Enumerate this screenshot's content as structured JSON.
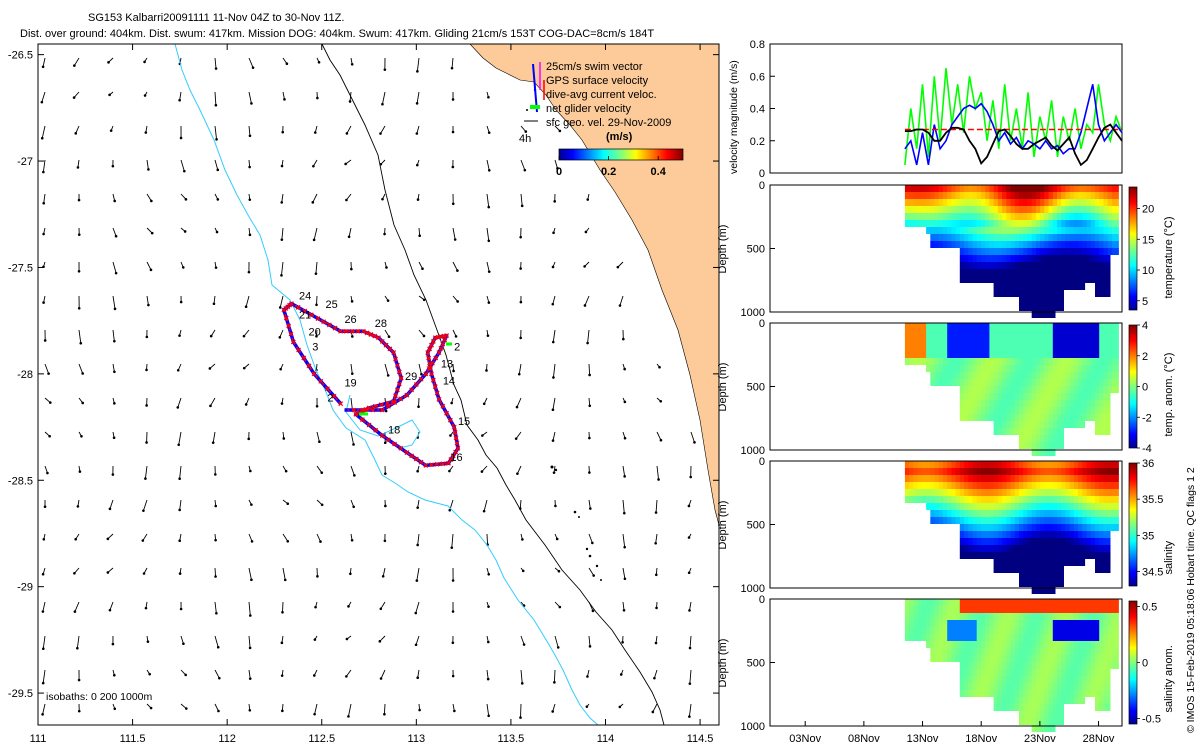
{
  "header": {
    "title_line1": "SG153 Kalbarri20091111 11-Nov 04Z to 30-Nov 11Z.",
    "title_line2": "Dist. over ground: 404km. Dist. swum: 417km. Mission DOG: 404km. Swum: 417km. Gliding 21cm/s 153T COG-DAC=8cm/s 184T"
  },
  "footer": {
    "credit": "© IMOS 15-Feb-2019 05:18:06 Hobart time. QC flags 1  2"
  },
  "colors": {
    "land": "#FDCB99",
    "isobath": "#33CCFF",
    "track_red": "#FF0000",
    "track_blue": "#0000FF",
    "glider_green": "#00FF00",
    "arrow": "#000000"
  },
  "chart_data": [
    {
      "type": "scatter",
      "id": "map",
      "x_ticks": [
        "111",
        "111.5",
        "112",
        "112.5",
        "113",
        "113.5",
        "114",
        "114.5"
      ],
      "y_ticks": [
        "-26.5",
        "-27",
        "-27.5",
        "-28",
        "-28.5",
        "-29",
        "-29.5"
      ],
      "xlim": [
        111,
        114.6
      ],
      "ylim": [
        -29.65,
        -26.45
      ],
      "legend": {
        "items": [
          {
            "label": "25cm/s swim vector",
            "color": "#0000FF"
          },
          {
            "label": "GPS surface velocity",
            "color": "#FF00FF"
          },
          {
            "label": "dive-avg current veloc.",
            "color": "#FF0000"
          },
          {
            "label": "net glider velocity",
            "color": "#00FF00"
          },
          {
            "label": "sfc geo. vel. 29-Nov-2009",
            "color": "#000000"
          }
        ],
        "scale_label": "4h",
        "colorbar_title": "(m/s)",
        "colorbar_ticks": [
          "0",
          "0.2",
          "0.4"
        ],
        "colorbar_range": [
          0,
          0.5
        ]
      },
      "isobaths_label": "isobaths: 0   200  1000m",
      "track_points": [
        {
          "lon": 112.6,
          "lat": -28.14
        },
        {
          "lon": 112.46,
          "lat": -28.0
        },
        {
          "lon": 112.35,
          "lat": -27.85
        },
        {
          "lon": 112.3,
          "lat": -27.7
        },
        {
          "lon": 112.34,
          "lat": -27.67
        },
        {
          "lon": 112.48,
          "lat": -27.74
        },
        {
          "lon": 112.6,
          "lat": -27.8
        },
        {
          "lon": 112.72,
          "lat": -27.8
        },
        {
          "lon": 112.8,
          "lat": -27.83
        },
        {
          "lon": 112.88,
          "lat": -27.9
        },
        {
          "lon": 112.92,
          "lat": -28.02
        },
        {
          "lon": 112.88,
          "lat": -28.13
        },
        {
          "lon": 112.75,
          "lat": -28.16
        },
        {
          "lon": 112.68,
          "lat": -28.19
        },
        {
          "lon": 112.82,
          "lat": -28.29
        },
        {
          "lon": 112.95,
          "lat": -28.37
        },
        {
          "lon": 113.05,
          "lat": -28.43
        },
        {
          "lon": 113.17,
          "lat": -28.42
        },
        {
          "lon": 113.22,
          "lat": -28.35
        },
        {
          "lon": 113.2,
          "lat": -28.25
        },
        {
          "lon": 113.12,
          "lat": -28.12
        },
        {
          "lon": 113.08,
          "lat": -28.0
        },
        {
          "lon": 113.06,
          "lat": -27.9
        },
        {
          "lon": 113.1,
          "lat": -27.83
        },
        {
          "lon": 113.16,
          "lat": -27.82
        },
        {
          "lon": 113.12,
          "lat": -27.9
        },
        {
          "lon": 113.05,
          "lat": -28.0
        },
        {
          "lon": 112.95,
          "lat": -28.1
        },
        {
          "lon": 112.82,
          "lat": -28.17
        },
        {
          "lon": 112.62,
          "lat": -28.17
        }
      ],
      "day_labels": [
        {
          "label": "24",
          "lon": 112.38,
          "lat": -27.65
        },
        {
          "label": "25",
          "lon": 112.52,
          "lat": -27.69
        },
        {
          "label": "21",
          "lon": 112.38,
          "lat": -27.74
        },
        {
          "label": "26",
          "lon": 112.62,
          "lat": -27.76
        },
        {
          "label": "28",
          "lon": 112.78,
          "lat": -27.78
        },
        {
          "label": "20",
          "lon": 112.43,
          "lat": -27.82
        },
        {
          "label": "3",
          "lon": 112.45,
          "lat": -27.89
        },
        {
          "label": "2",
          "lon": 113.2,
          "lat": -27.89
        },
        {
          "label": "13",
          "lon": 113.13,
          "lat": -27.97
        },
        {
          "label": "19",
          "lon": 112.62,
          "lat": -28.06
        },
        {
          "label": "29",
          "lon": 112.94,
          "lat": -28.03
        },
        {
          "label": "14",
          "lon": 113.14,
          "lat": -28.05
        },
        {
          "label": "2",
          "lon": 112.53,
          "lat": -28.13
        },
        {
          "label": "15",
          "lon": 113.22,
          "lat": -28.24
        },
        {
          "label": "18",
          "lon": 112.85,
          "lat": -28.28
        },
        {
          "label": "16",
          "lon": 113.18,
          "lat": -28.41
        }
      ]
    },
    {
      "type": "line",
      "id": "velocity",
      "ylabel": "velocity magnitude (m/s)",
      "y_ticks": [
        "0",
        "0.2",
        "0.4",
        "0.6",
        "0.8"
      ],
      "ylim": [
        0,
        0.8
      ],
      "xlim": [
        0,
        30
      ],
      "series": [
        {
          "color": "#00FF00",
          "x": [
            11.5,
            12,
            12.5,
            13,
            13.5,
            14,
            14.5,
            15,
            15.5,
            16,
            16.5,
            17,
            17.5,
            18,
            18.5,
            19,
            19.5,
            20,
            20.5,
            21,
            21.5,
            22,
            22.5,
            23,
            23.5,
            24,
            24.5,
            25,
            25.5,
            26,
            26.5,
            27,
            27.5,
            28,
            28.5,
            29,
            29.5,
            30
          ],
          "values": [
            0.05,
            0.4,
            0.15,
            0.55,
            0.1,
            0.6,
            0.2,
            0.65,
            0.3,
            0.55,
            0.25,
            0.6,
            0.4,
            0.5,
            0.2,
            0.45,
            0.15,
            0.55,
            0.2,
            0.4,
            0.15,
            0.5,
            0.1,
            0.35,
            0.2,
            0.45,
            0.1,
            0.35,
            0.2,
            0.4,
            0.15,
            0.3,
            0.25,
            0.55,
            0.3,
            0.2,
            0.35,
            0.25
          ]
        },
        {
          "color": "#0000FF",
          "x": [
            11.5,
            12,
            12.5,
            13,
            13.5,
            14,
            14.5,
            15,
            15.5,
            16,
            16.5,
            17,
            17.5,
            18,
            18.5,
            19,
            19.5,
            20,
            20.5,
            21,
            21.5,
            22,
            22.5,
            23,
            23.5,
            24,
            24.5,
            25,
            25.5,
            26,
            26.5,
            27,
            27.5,
            28,
            28.5,
            29,
            29.5,
            30
          ],
          "values": [
            0.15,
            0.2,
            0.05,
            0.25,
            0.05,
            0.3,
            0.15,
            0.2,
            0.3,
            0.35,
            0.4,
            0.42,
            0.4,
            0.43,
            0.38,
            0.3,
            0.2,
            0.25,
            0.18,
            0.22,
            0.15,
            0.2,
            0.18,
            0.15,
            0.2,
            0.15,
            0.17,
            0.12,
            0.15,
            0.15,
            0.25,
            0.4,
            0.55,
            0.3,
            0.2,
            0.25,
            0.3,
            0.25
          ]
        },
        {
          "color": "#FF0000",
          "x": [
            11.5,
            30
          ],
          "values": [
            0.27,
            0.27
          ]
        },
        {
          "color": "#000000",
          "x": [
            11.5,
            12,
            12.5,
            13,
            13.5,
            14,
            14.5,
            15,
            15.5,
            16,
            16.5,
            17,
            17.5,
            18,
            18.5,
            19,
            19.5,
            20,
            20.5,
            21,
            21.5,
            22,
            22.5,
            23,
            23.5,
            24,
            24.5,
            25,
            25.5,
            26,
            26.5,
            27,
            27.5,
            28,
            28.5,
            29,
            29.5,
            30
          ],
          "values": [
            0.26,
            0.26,
            0.27,
            0.27,
            0.25,
            0.2,
            0.2,
            0.25,
            0.28,
            0.28,
            0.27,
            0.2,
            0.15,
            0.06,
            0.1,
            0.18,
            0.26,
            0.27,
            0.23,
            0.18,
            0.15,
            0.15,
            0.18,
            0.2,
            0.22,
            0.17,
            0.14,
            0.18,
            0.22,
            0.12,
            0.05,
            0.08,
            0.15,
            0.22,
            0.28,
            0.3,
            0.25,
            0.2
          ]
        }
      ]
    },
    {
      "type": "heatmap",
      "id": "temperature",
      "ylabel": "Depth (m)",
      "colorbar_label": "temperature (°C)",
      "colorbar_ticks": [
        "5",
        "10",
        "15",
        "20"
      ],
      "clim": [
        3.5,
        23.5
      ],
      "ylim": [
        1000,
        0
      ],
      "y_ticks": [
        "0",
        "500",
        "1000"
      ]
    },
    {
      "type": "heatmap",
      "id": "temp_anom",
      "ylabel": "Depth (m)",
      "colorbar_label": "temp. anom. (°C)",
      "colorbar_ticks": [
        "-4",
        "-2",
        "0",
        "2",
        "4"
      ],
      "clim": [
        -4,
        4
      ],
      "ylim": [
        1000,
        0
      ],
      "y_ticks": [
        "0",
        "500",
        "1000"
      ]
    },
    {
      "type": "heatmap",
      "id": "salinity",
      "ylabel": "Depth (m)",
      "colorbar_label": "salinity",
      "colorbar_ticks": [
        "34.5",
        "35",
        "35.5",
        "36"
      ],
      "clim": [
        34.3,
        36
      ],
      "ylim": [
        1000,
        0
      ],
      "y_ticks": [
        "0",
        "500",
        "1000"
      ]
    },
    {
      "type": "heatmap",
      "id": "salinity_anom",
      "ylabel": "Depth (m)",
      "colorbar_label": "salinity anom.",
      "colorbar_ticks": [
        "-0.5",
        "0",
        "0.5"
      ],
      "clim": [
        -0.55,
        0.55
      ],
      "ylim": [
        1000,
        0
      ],
      "y_ticks": [
        "0",
        "500",
        "1000"
      ],
      "x_ticks": [
        "03Nov",
        "08Nov",
        "13Nov",
        "18Nov",
        "23Nov",
        "28Nov"
      ]
    }
  ]
}
